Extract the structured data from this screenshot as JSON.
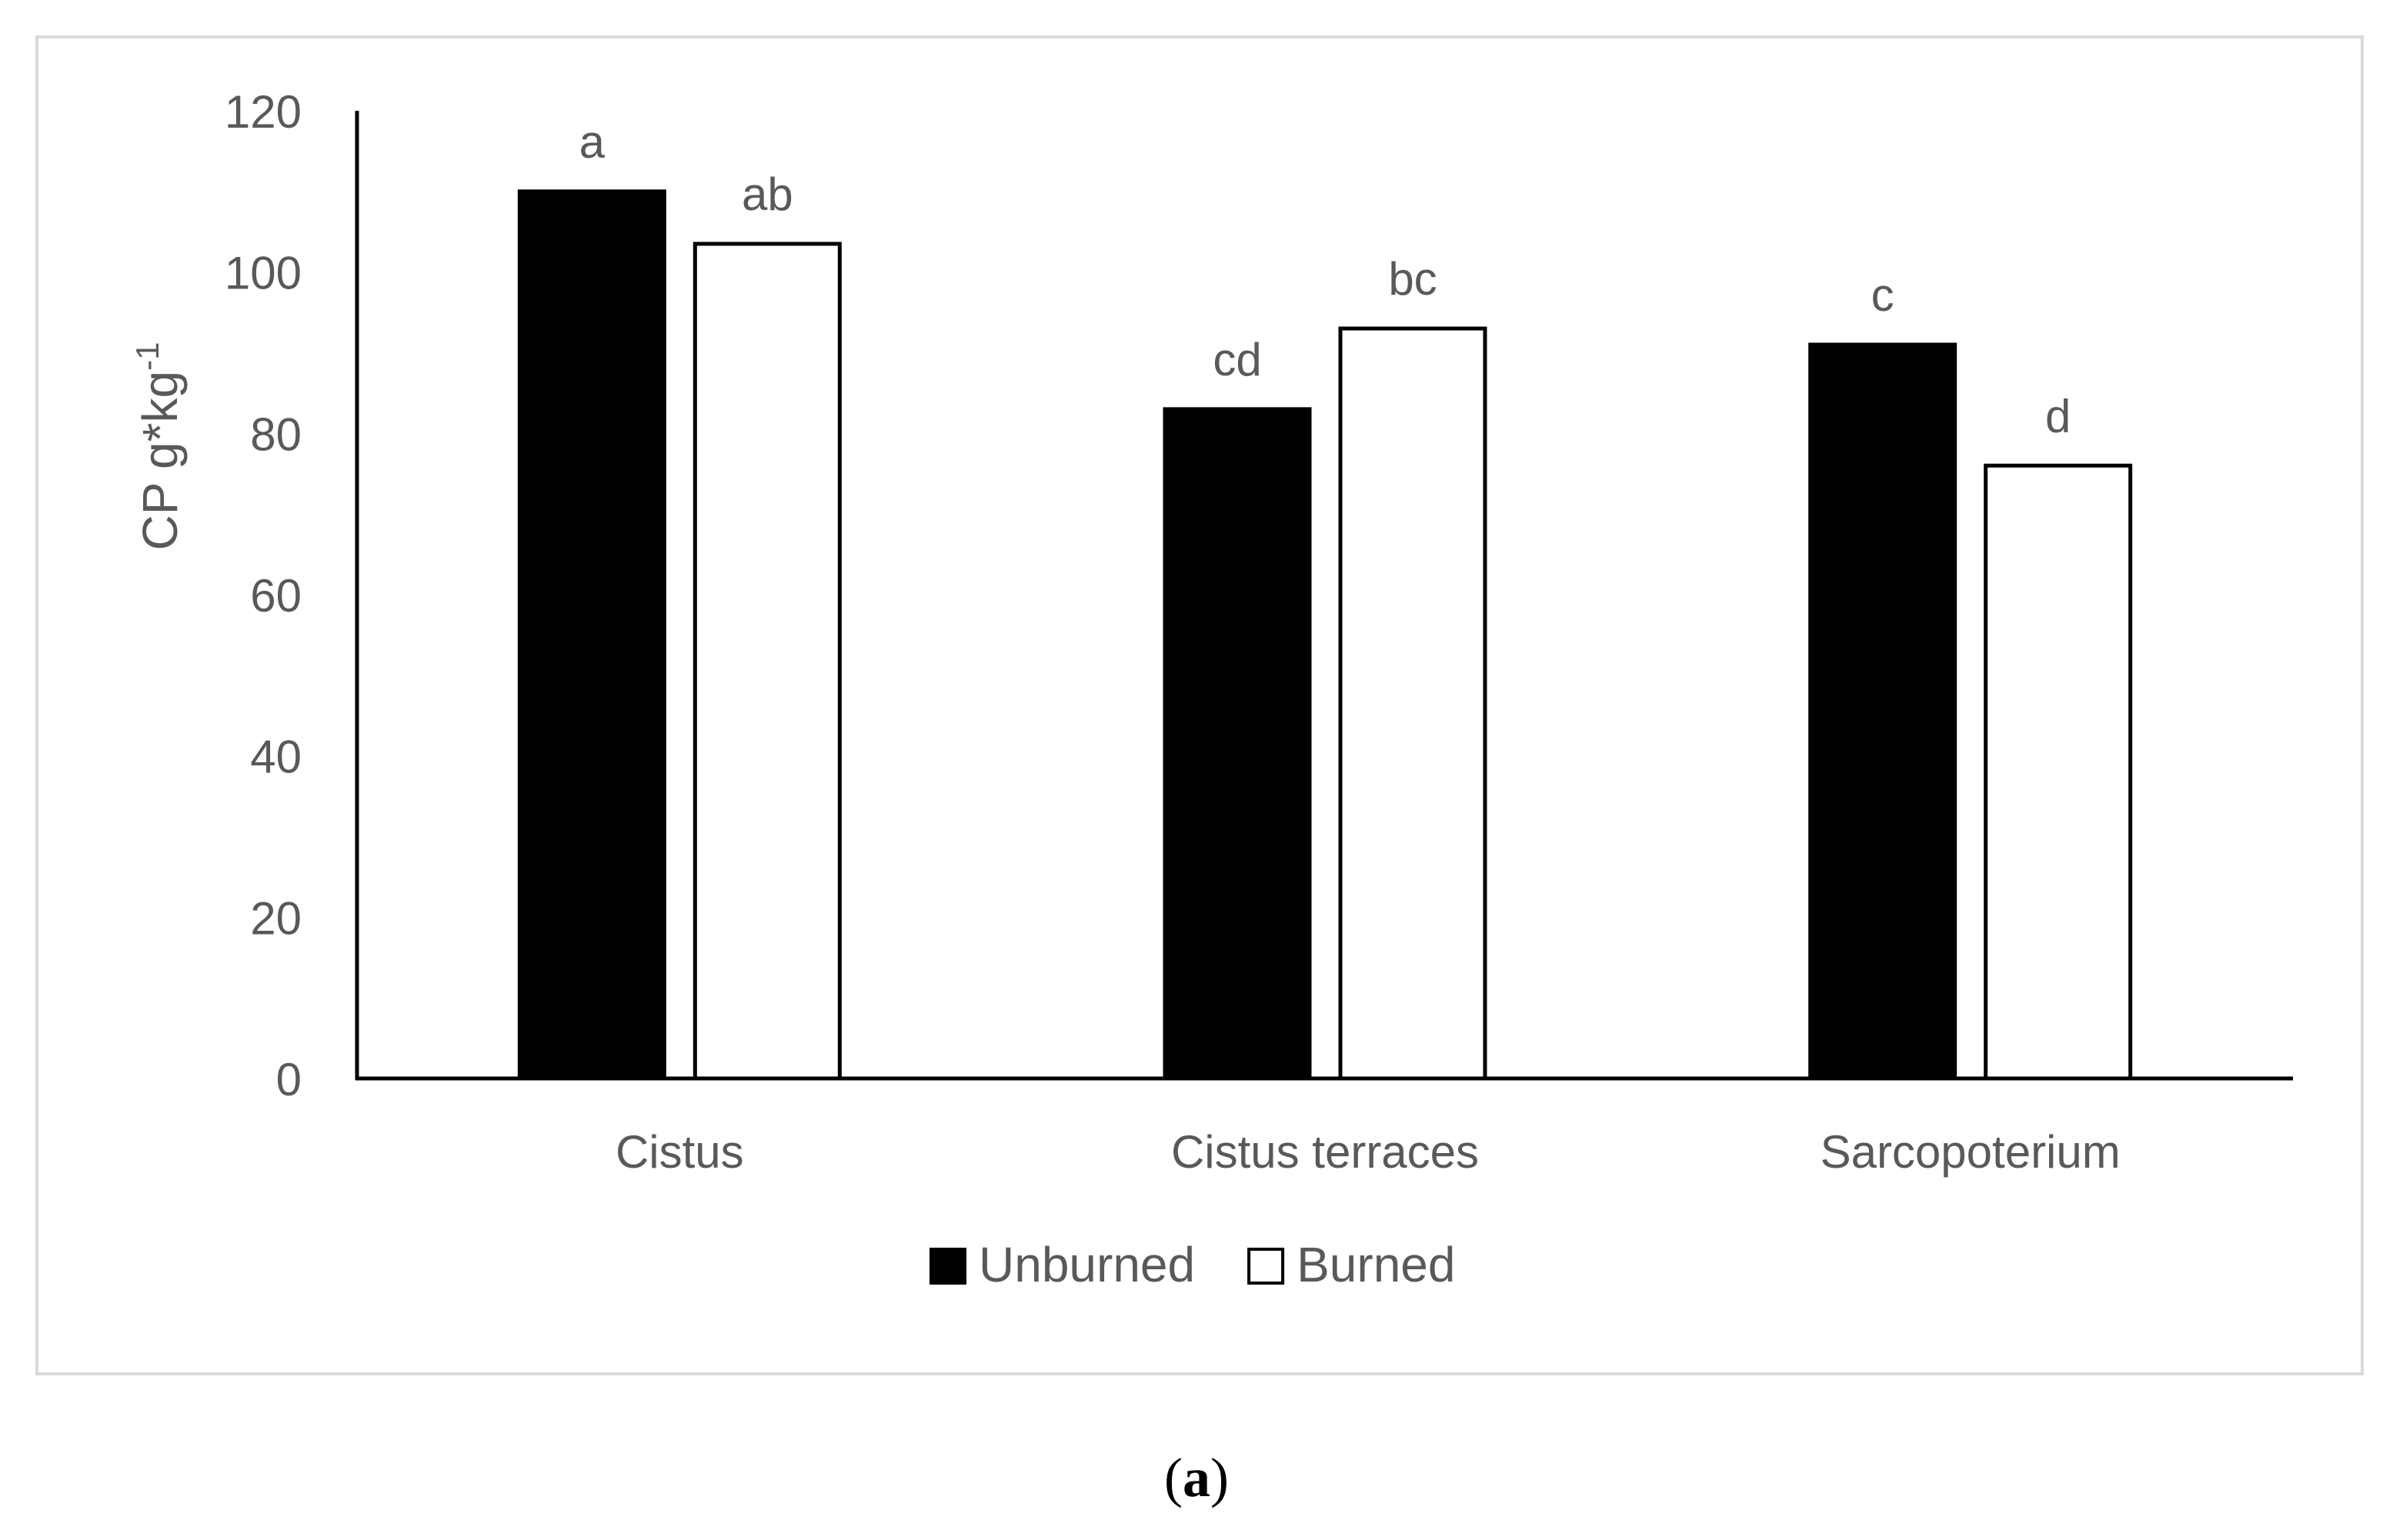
{
  "chart_data": {
    "type": "bar",
    "categories": [
      "Cistus",
      "Cistus terraces",
      "Sarcopoterium"
    ],
    "series": [
      {
        "name": "Unburned",
        "values": [
          110,
          83,
          91
        ],
        "labels": [
          "a",
          "cd",
          "c"
        ],
        "fill": "#000000"
      },
      {
        "name": "Burned",
        "values": [
          103.5,
          93,
          76
        ],
        "labels": [
          "ab",
          "bc",
          "d"
        ],
        "fill": "#ffffff"
      }
    ],
    "ylabel": {
      "main": "CP g*kg",
      "sup": "-1"
    },
    "yticks": [
      0,
      20,
      40,
      60,
      80,
      100,
      120
    ],
    "ylim": [
      0,
      120
    ],
    "grid": false,
    "legend_position": "bottom"
  },
  "caption": {
    "letter": "a",
    "open": "(",
    "close": ")"
  },
  "colors": {
    "axis": "#000000",
    "text": "#595959",
    "frame": "#d9d9d9"
  }
}
